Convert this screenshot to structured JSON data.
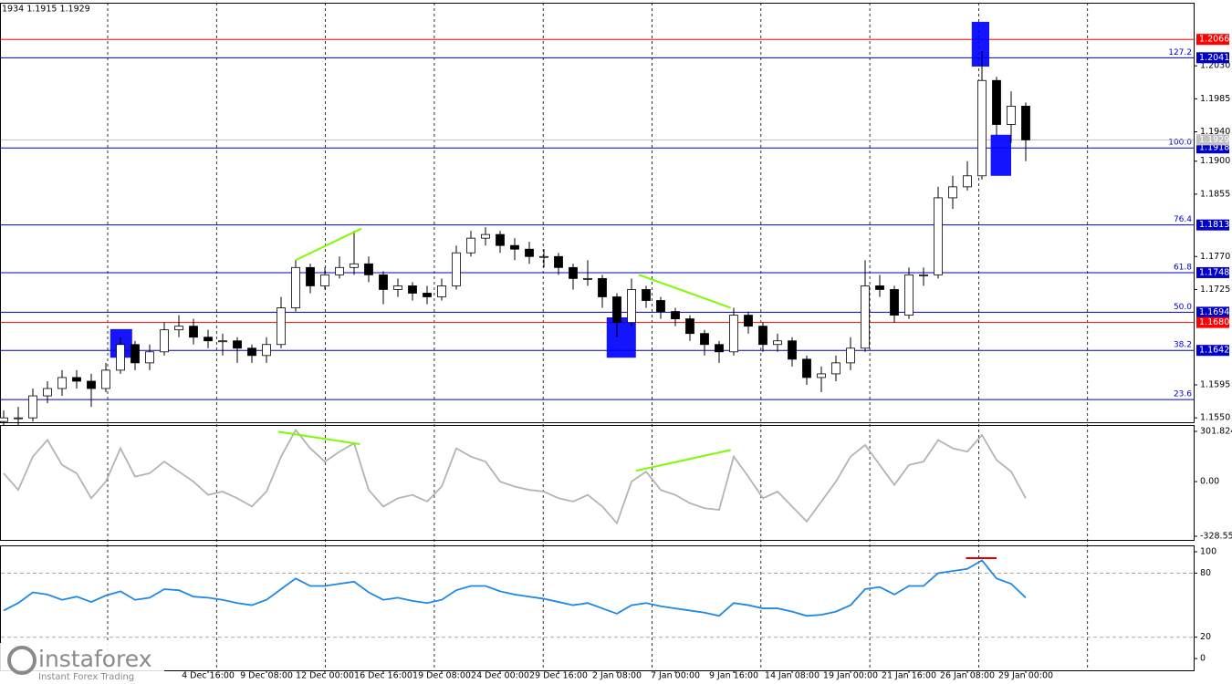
{
  "brand": {
    "name": "instaforex",
    "tagline": "Instant Forex Trading"
  },
  "chart_data": [
    {
      "type": "candlestick",
      "title": "1934 1.1915 1.1929",
      "ylim": [
        1.1544,
        1.2116
      ],
      "yticks": [
        {
          "value": 1.203,
          "label": "1.2030"
        },
        {
          "value": 1.1985,
          "label": "1.1985"
        },
        {
          "value": 1.194,
          "label": "1.1940"
        },
        {
          "value": 1.19,
          "label": "1.1900"
        },
        {
          "value": 1.1855,
          "label": "1.1855"
        },
        {
          "value": 1.177,
          "label": "1.1770"
        },
        {
          "value": 1.1725,
          "label": "1.1725"
        },
        {
          "value": 1.1595,
          "label": "1.1595"
        },
        {
          "value": 1.155,
          "label": "1.1550"
        }
      ],
      "categories": [
        null,
        null,
        null,
        null,
        null,
        null,
        null,
        null,
        null,
        null,
        null,
        null,
        null,
        null,
        "4 Dec 16:00",
        null,
        null,
        null,
        "9 Dec 08:00",
        null,
        null,
        null,
        "12 Dec 00:00",
        null,
        null,
        null,
        "16 Dec 16:00",
        null,
        null,
        null,
        "19 Dec 08:00",
        null,
        null,
        null,
        "24 Dec 00:00",
        null,
        null,
        null,
        "29 Dec 16:00",
        null,
        null,
        null,
        "2 Jan 08:00",
        null,
        null,
        null,
        "7 Jan 00:00",
        null,
        null,
        null,
        "9 Jan 16:00",
        null,
        null,
        null,
        "14 Jan 08:00",
        null,
        null,
        null,
        "19 Jan 00:00",
        null,
        null,
        null,
        "21 Jan 16:00",
        null,
        null,
        null,
        "26 Jan 08:00",
        null,
        null,
        null,
        "29 Jan 00:00"
      ],
      "open": [
        1.1545,
        1.155,
        1.155,
        1.158,
        1.159,
        1.1605,
        1.16,
        1.159,
        1.1615,
        1.165,
        1.1625,
        1.164,
        1.167,
        1.1675,
        1.166,
        1.1655,
        1.1655,
        1.1645,
        1.1635,
        1.165,
        1.17,
        1.1755,
        1.173,
        1.1745,
        1.1755,
        1.176,
        1.1745,
        1.1725,
        1.173,
        1.172,
        1.1715,
        1.173,
        1.1775,
        1.1795,
        1.18,
        1.1785,
        1.178,
        1.177,
        1.177,
        1.1755,
        1.174,
        1.174,
        1.1715,
        1.168,
        1.1725,
        1.171,
        1.1695,
        1.1685,
        1.1665,
        1.165,
        1.164,
        1.169,
        1.1675,
        1.165,
        1.1655,
        1.163,
        1.1605,
        1.161,
        1.1625,
        1.1645,
        1.173,
        1.1725,
        1.169,
        1.1745,
        1.1745,
        1.185,
        1.1865,
        1.188,
        1.201,
        1.195,
        1.1975
      ],
      "high": [
        1.156,
        1.1565,
        1.159,
        1.16,
        1.1615,
        1.1615,
        1.161,
        1.1625,
        1.166,
        1.1655,
        1.165,
        1.168,
        1.169,
        1.1685,
        1.167,
        1.1665,
        1.166,
        1.165,
        1.166,
        1.1715,
        1.1765,
        1.176,
        1.1755,
        1.177,
        1.1805,
        1.177,
        1.175,
        1.174,
        1.1735,
        1.173,
        1.174,
        1.1785,
        1.1805,
        1.181,
        1.1805,
        1.1795,
        1.179,
        1.178,
        1.1775,
        1.176,
        1.1765,
        1.1745,
        1.172,
        1.174,
        1.173,
        1.1715,
        1.17,
        1.169,
        1.167,
        1.1655,
        1.17,
        1.1695,
        1.168,
        1.1665,
        1.166,
        1.1635,
        1.162,
        1.1635,
        1.166,
        1.1765,
        1.1745,
        1.173,
        1.1755,
        1.1755,
        1.1865,
        1.188,
        1.19,
        1.205,
        1.2015,
        1.1995,
        1.198
      ],
      "low": [
        1.154,
        1.154,
        1.1545,
        1.157,
        1.158,
        1.159,
        1.1565,
        1.1585,
        1.161,
        1.1615,
        1.1615,
        1.1635,
        1.166,
        1.165,
        1.1645,
        1.1635,
        1.1625,
        1.1625,
        1.1625,
        1.1645,
        1.1695,
        1.172,
        1.1725,
        1.174,
        1.1745,
        1.1735,
        1.1705,
        1.1715,
        1.171,
        1.1705,
        1.171,
        1.1725,
        1.177,
        1.1785,
        1.1775,
        1.1765,
        1.176,
        1.1755,
        1.1745,
        1.1725,
        1.173,
        1.17,
        1.166,
        1.1675,
        1.17,
        1.1685,
        1.1675,
        1.1655,
        1.1635,
        1.1625,
        1.1635,
        1.1665,
        1.164,
        1.164,
        1.162,
        1.1595,
        1.1585,
        1.16,
        1.1615,
        1.164,
        1.1715,
        1.168,
        1.1685,
        1.173,
        1.174,
        1.1835,
        1.186,
        1.1875,
        1.1935,
        1.1925,
        1.19
      ],
      "close": [
        1.155,
        1.155,
        1.158,
        1.159,
        1.1605,
        1.16,
        1.159,
        1.1615,
        1.165,
        1.1625,
        1.164,
        1.167,
        1.1675,
        1.166,
        1.1655,
        1.1655,
        1.1645,
        1.1635,
        1.165,
        1.17,
        1.1755,
        1.173,
        1.1745,
        1.1755,
        1.176,
        1.1745,
        1.1725,
        1.173,
        1.172,
        1.1715,
        1.173,
        1.1775,
        1.1795,
        1.18,
        1.1785,
        1.178,
        1.177,
        1.177,
        1.1755,
        1.174,
        1.174,
        1.1715,
        1.168,
        1.1725,
        1.171,
        1.1695,
        1.1685,
        1.1665,
        1.165,
        1.164,
        1.169,
        1.1675,
        1.165,
        1.1655,
        1.163,
        1.1605,
        1.161,
        1.1625,
        1.1645,
        1.173,
        1.1725,
        1.169,
        1.1745,
        1.1745,
        1.185,
        1.1865,
        1.188,
        1.201,
        1.195,
        1.1975,
        1.1929
      ],
      "levels": [
        {
          "value": 1.2066,
          "label": "1.2066",
          "color": "#ff0000"
        },
        {
          "value": 1.2041,
          "label": "1.2041",
          "fib": "127.2",
          "color": "#0000c8"
        },
        {
          "value": 1.1918,
          "label": "1.1918",
          "fib": "100.0",
          "color": "#0000c8"
        },
        {
          "value": 1.1813,
          "label": "1.1813",
          "fib": "76.4",
          "color": "#0000c8"
        },
        {
          "value": 1.1748,
          "label": "1.1748",
          "fib": "61.8",
          "color": "#0000c8"
        },
        {
          "value": 1.1694,
          "label": "1.1694",
          "fib": "50.0",
          "color": "#0000c8"
        },
        {
          "value": 1.168,
          "label": "1.1680",
          "color": "#ff0000"
        },
        {
          "value": 1.1642,
          "label": "1.1642",
          "fib": "38.2",
          "color": "#0000c8"
        },
        {
          "value": 1.1575,
          "fib": "23.6",
          "color": "#0000c8"
        }
      ],
      "last": {
        "value": 1.1929,
        "label": "1.1929"
      },
      "zones": [
        {
          "x": [
            7.3,
            8.8
          ],
          "y": [
            1.1632,
            1.1671
          ]
        },
        {
          "x": [
            41.3,
            43.3
          ],
          "y": [
            1.1632,
            1.1687
          ]
        },
        {
          "x": [
            66.3,
            67.5
          ],
          "y": [
            1.2029,
            1.209
          ]
        },
        {
          "x": [
            67.6,
            69
          ],
          "y": [
            1.188,
            1.1936
          ]
        }
      ],
      "trendlines": [
        {
          "x": [
            20,
            24.5
          ],
          "y": [
            1.1765,
            1.1808
          ]
        },
        {
          "x": [
            43.5,
            49.8
          ],
          "y": [
            1.1745,
            1.17
          ]
        }
      ]
    },
    {
      "type": "line",
      "color": "#b4b4b4",
      "ylim": [
        -350.5,
        340.2
      ],
      "yticks": [
        301.8242,
        {
          "value": 0,
          "label": "0.00"
        },
        -328.5513
      ],
      "values": [
        50,
        -50,
        150,
        250,
        100,
        50,
        -100,
        0,
        200,
        30,
        50,
        120,
        60,
        0,
        -80,
        -60,
        -100,
        -150,
        -60,
        150,
        310,
        200,
        120,
        180,
        230,
        -50,
        -150,
        -100,
        -80,
        -120,
        -30,
        200,
        150,
        120,
        0,
        -30,
        -50,
        -60,
        -100,
        -120,
        -80,
        -150,
        -250,
        0,
        60,
        -50,
        -80,
        -130,
        -160,
        -170,
        150,
        30,
        -100,
        -60,
        -150,
        -240,
        -120,
        0,
        150,
        220,
        100,
        -20,
        100,
        120,
        250,
        200,
        180,
        280,
        130,
        60,
        -100
      ],
      "trendlines": [
        {
          "x": [
            18.8,
            24.4
          ],
          "y": [
            300,
            225
          ]
        },
        {
          "x": [
            43.3,
            49.8
          ],
          "y": [
            65,
            190
          ]
        }
      ]
    },
    {
      "type": "line",
      "color": "#1e88e5",
      "ylim": [
        -11,
        106
      ],
      "yticks": [
        100,
        80,
        20,
        0
      ],
      "levels": [
        80,
        20
      ],
      "values": [
        45,
        52,
        62,
        60,
        55,
        58,
        53,
        59,
        63,
        55,
        57,
        65,
        64,
        58,
        57,
        55,
        52,
        50,
        55,
        65,
        75,
        68,
        68,
        70,
        72,
        62,
        55,
        57,
        54,
        52,
        55,
        64,
        68,
        68,
        63,
        60,
        58,
        56,
        53,
        50,
        52,
        47,
        42,
        50,
        52,
        49,
        47,
        45,
        43,
        40,
        52,
        50,
        47,
        47,
        44,
        40,
        41,
        44,
        50,
        65,
        67,
        60,
        68,
        68,
        80,
        82,
        84,
        92,
        75,
        70,
        57
      ],
      "trendlines": [
        {
          "x": [
            65.9,
            68
          ],
          "y": [
            94,
            94
          ],
          "color": "#e00000"
        }
      ]
    }
  ]
}
